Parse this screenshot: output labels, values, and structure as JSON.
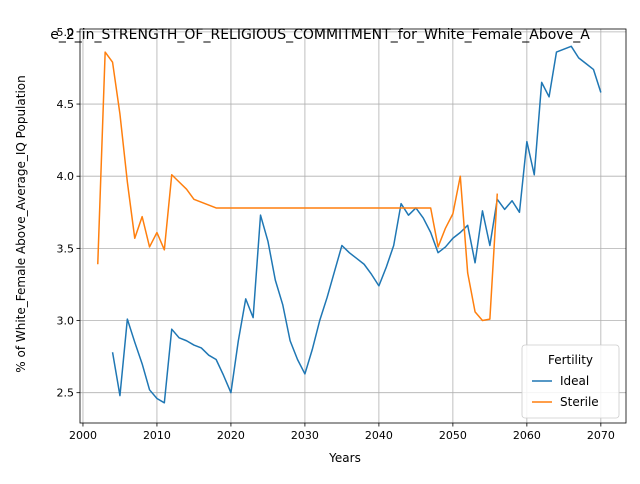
{
  "chart_data": {
    "type": "line",
    "title": "e_2_in_STRENGTH_OF_RELIGIOUS_COMMITMENT_for_White_Female_Above_A",
    "xlabel": "Years",
    "ylabel": "% of White_Female Above_Average_IQ Population",
    "xlim": [
      1999.6,
      2073.4
    ],
    "ylim": [
      2.29,
      5.02
    ],
    "xticks": [
      2000,
      2010,
      2020,
      2030,
      2040,
      2050,
      2060,
      2070
    ],
    "yticks": [
      2.5,
      3.0,
      3.5,
      4.0,
      4.5,
      5.0
    ],
    "xtick_labels": [
      "2000",
      "2010",
      "2020",
      "2030",
      "2040",
      "2050",
      "2060",
      "2070"
    ],
    "ytick_labels": [
      "2.5",
      "3.0",
      "3.5",
      "4.0",
      "4.5",
      "5.0"
    ],
    "grid": true,
    "legend": {
      "title": "Fertility",
      "placement": "bottom-right"
    },
    "series": [
      {
        "name": "Ideal",
        "color": "#1f77b4",
        "points": [
          [
            2004,
            2.78
          ],
          [
            2005,
            2.48
          ],
          [
            2006,
            3.01
          ],
          [
            2007,
            2.85
          ],
          [
            2008,
            2.7
          ],
          [
            2009,
            2.52
          ],
          [
            2010,
            2.46
          ],
          [
            2011,
            2.43
          ],
          [
            2012,
            2.94
          ],
          [
            2013,
            2.88
          ],
          [
            2014,
            2.86
          ],
          [
            2015,
            2.83
          ],
          [
            2016,
            2.81
          ],
          [
            2017,
            2.76
          ],
          [
            2018,
            2.73
          ],
          [
            2019,
            2.62
          ],
          [
            2020,
            2.5
          ],
          [
            2021,
            2.86
          ],
          [
            2022,
            3.15
          ],
          [
            2023,
            3.02
          ],
          [
            2024,
            3.73
          ],
          [
            2025,
            3.55
          ],
          [
            2026,
            3.28
          ],
          [
            2027,
            3.11
          ],
          [
            2028,
            2.86
          ],
          [
            2029,
            2.73
          ],
          [
            2030,
            2.63
          ],
          [
            2031,
            2.8
          ],
          [
            2032,
            3.0
          ],
          [
            2033,
            3.16
          ],
          [
            2034,
            3.34
          ],
          [
            2035,
            3.52
          ],
          [
            2036,
            3.47
          ],
          [
            2037,
            3.43
          ],
          [
            2038,
            3.39
          ],
          [
            2039,
            3.32
          ],
          [
            2040,
            3.24
          ],
          [
            2041,
            3.37
          ],
          [
            2042,
            3.52
          ],
          [
            2043,
            3.81
          ],
          [
            2044,
            3.73
          ],
          [
            2045,
            3.78
          ],
          [
            2046,
            3.71
          ],
          [
            2047,
            3.61
          ],
          [
            2048,
            3.47
          ],
          [
            2049,
            3.51
          ],
          [
            2050,
            3.57
          ],
          [
            2051,
            3.61
          ],
          [
            2052,
            3.66
          ],
          [
            2053,
            3.4
          ],
          [
            2054,
            3.76
          ],
          [
            2055,
            3.52
          ],
          [
            2056,
            3.84
          ],
          [
            2057,
            3.77
          ],
          [
            2058,
            3.83
          ],
          [
            2059,
            3.75
          ],
          [
            2060,
            4.24
          ],
          [
            2061,
            4.01
          ],
          [
            2062,
            4.65
          ],
          [
            2063,
            4.55
          ],
          [
            2064,
            4.86
          ],
          [
            2065,
            4.88
          ],
          [
            2066,
            4.9
          ],
          [
            2067,
            4.82
          ],
          [
            2068,
            4.78
          ],
          [
            2069,
            4.74
          ],
          [
            2070,
            4.58
          ]
        ]
      },
      {
        "name": "Sterile",
        "color": "#ff7f0e",
        "points": [
          [
            2002,
            3.39
          ],
          [
            2003,
            4.86
          ],
          [
            2004,
            4.79
          ],
          [
            2005,
            4.43
          ],
          [
            2006,
            3.96
          ],
          [
            2007,
            3.57
          ],
          [
            2008,
            3.72
          ],
          [
            2009,
            3.51
          ],
          [
            2010,
            3.61
          ],
          [
            2011,
            3.49
          ],
          [
            2012,
            4.01
          ],
          [
            2013,
            3.96
          ],
          [
            2014,
            3.91
          ],
          [
            2015,
            3.84
          ],
          [
            2016,
            3.82
          ],
          [
            2017,
            3.8
          ],
          [
            2018,
            3.78
          ],
          [
            2020,
            3.78
          ],
          [
            2030,
            3.78
          ],
          [
            2040,
            3.78
          ],
          [
            2047,
            3.78
          ],
          [
            2048,
            3.51
          ],
          [
            2049,
            3.64
          ],
          [
            2050,
            3.74
          ],
          [
            2051,
            4.0
          ],
          [
            2052,
            3.33
          ],
          [
            2053,
            3.06
          ],
          [
            2054,
            3.0
          ],
          [
            2055,
            3.01
          ],
          [
            2056,
            3.88
          ]
        ]
      }
    ]
  }
}
